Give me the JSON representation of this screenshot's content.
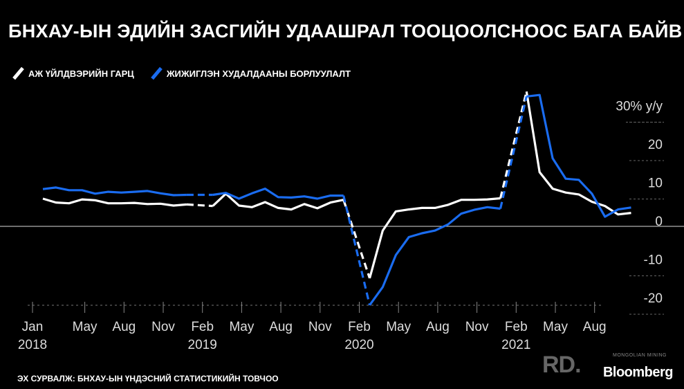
{
  "title": "БНХАУ-ЫН ЭДИЙН ЗАСГИЙН УДААШРАЛ ТООЦООЛСНООС БАГА БАЙВ",
  "legend": [
    {
      "label": "АЖ ҮЙЛДВЭРИЙН ГАРЦ",
      "color": "#ffffff"
    },
    {
      "label": "ЖИЖИГЛЭН ХУДАЛДААНЫ БОРЛУУЛАЛТ",
      "color": "#1a6cf0"
    }
  ],
  "source": "ЭХ СУРВАЛЖ: БНХАУ-ЫН ҮНДЭСНИЙ СТАТИСТИКИЙН ТОВЧОО",
  "watermark": {
    "rd": "RD.",
    "mm": "MONGOLIAN MINING",
    "brand": "Bloomberg"
  },
  "chart_data": {
    "type": "line",
    "title": "БНХАУ-ЫН ЭДИЙН ЗАСГИЙН УДААШРАЛ ТООЦООЛСНООС БАГА БАЙВ",
    "ylabel": "y/y",
    "ylim": [
      -24,
      32
    ],
    "y_ticks": [
      {
        "value": 30,
        "label": "30% y/y"
      },
      {
        "value": 20,
        "label": "20"
      },
      {
        "value": 10,
        "label": "10"
      },
      {
        "value": 0,
        "label": "0"
      },
      {
        "value": -10,
        "label": "-10"
      },
      {
        "value": -20,
        "label": "-20"
      }
    ],
    "x_ticks": [
      {
        "x": "2018-01",
        "label": "Jan",
        "year": "2018"
      },
      {
        "x": "2018-05",
        "label": "May",
        "year": ""
      },
      {
        "x": "2018-08",
        "label": "Aug",
        "year": ""
      },
      {
        "x": "2018-11",
        "label": "Nov",
        "year": ""
      },
      {
        "x": "2019-02",
        "label": "Feb",
        "year": "2019"
      },
      {
        "x": "2019-05",
        "label": "May",
        "year": ""
      },
      {
        "x": "2019-08",
        "label": "Aug",
        "year": ""
      },
      {
        "x": "2019-11",
        "label": "Nov",
        "year": ""
      },
      {
        "x": "2020-02",
        "label": "Feb",
        "year": "2020"
      },
      {
        "x": "2020-05",
        "label": "May",
        "year": ""
      },
      {
        "x": "2020-08",
        "label": "Aug",
        "year": ""
      },
      {
        "x": "2020-11",
        "label": "Nov",
        "year": ""
      },
      {
        "x": "2021-02",
        "label": "Feb",
        "year": "2021"
      },
      {
        "x": "2021-05",
        "label": "May",
        "year": ""
      },
      {
        "x": "2021-08",
        "label": "Aug",
        "year": ""
      }
    ],
    "series": [
      {
        "name": "АЖ ҮЙЛДВЭРИЙН ГАРЦ",
        "color": "#ffffff",
        "segments": [
          {
            "style": "solid",
            "points": [
              [
                "2018-01",
                7.2
              ],
              [
                "2018-02",
                6.2
              ],
              [
                "2018-03",
                6.0
              ],
              [
                "2018-04",
                7.0
              ],
              [
                "2018-05",
                6.8
              ],
              [
                "2018-06",
                6.0
              ],
              [
                "2018-07",
                6.0
              ],
              [
                "2018-08",
                6.1
              ],
              [
                "2018-09",
                5.8
              ],
              [
                "2018-10",
                5.9
              ],
              [
                "2018-11",
                5.4
              ],
              [
                "2018-12",
                5.7
              ]
            ]
          },
          {
            "style": "dashed",
            "points": [
              [
                "2018-12",
                5.7
              ],
              [
                "2019-02",
                5.3
              ]
            ]
          },
          {
            "style": "solid",
            "points": [
              [
                "2019-02",
                5.3
              ],
              [
                "2019-03",
                8.5
              ],
              [
                "2019-04",
                5.4
              ],
              [
                "2019-05",
                5.0
              ],
              [
                "2019-06",
                6.3
              ],
              [
                "2019-07",
                4.8
              ],
              [
                "2019-08",
                4.4
              ],
              [
                "2019-09",
                5.8
              ],
              [
                "2019-10",
                4.7
              ],
              [
                "2019-11",
                6.2
              ],
              [
                "2019-12",
                6.9
              ]
            ]
          },
          {
            "style": "dashed",
            "points": [
              [
                "2019-12",
                6.9
              ],
              [
                "2020-02",
                -13.5
              ]
            ]
          },
          {
            "style": "solid",
            "points": [
              [
                "2020-02",
                -13.5
              ],
              [
                "2020-03",
                -1.1
              ],
              [
                "2020-04",
                3.9
              ],
              [
                "2020-05",
                4.4
              ],
              [
                "2020-06",
                4.8
              ],
              [
                "2020-07",
                4.8
              ],
              [
                "2020-08",
                5.6
              ],
              [
                "2020-09",
                6.9
              ],
              [
                "2020-10",
                6.9
              ],
              [
                "2020-11",
                7.0
              ],
              [
                "2020-12",
                7.3
              ]
            ]
          },
          {
            "style": "dashed",
            "points": [
              [
                "2020-12",
                7.3
              ],
              [
                "2021-02",
                35.1
              ]
            ]
          },
          {
            "style": "solid",
            "points": [
              [
                "2021-02",
                35.1
              ],
              [
                "2021-03",
                14.1
              ],
              [
                "2021-04",
                9.8
              ],
              [
                "2021-05",
                8.8
              ],
              [
                "2021-06",
                8.3
              ],
              [
                "2021-07",
                6.4
              ],
              [
                "2021-08",
                5.3
              ],
              [
                "2021-09",
                3.1
              ],
              [
                "2021-10",
                3.5
              ]
            ]
          }
        ]
      },
      {
        "name": "ЖИЖИГЛЭН ХУДАЛДААНЫ БОРЛУУЛАЛТ",
        "color": "#1a6cf0",
        "segments": [
          {
            "style": "solid",
            "points": [
              [
                "2018-01",
                9.7
              ],
              [
                "2018-02",
                10.1
              ],
              [
                "2018-03",
                9.4
              ],
              [
                "2018-04",
                9.4
              ],
              [
                "2018-05",
                8.5
              ],
              [
                "2018-06",
                9.0
              ],
              [
                "2018-07",
                8.8
              ],
              [
                "2018-08",
                9.0
              ],
              [
                "2018-09",
                9.2
              ],
              [
                "2018-10",
                8.6
              ],
              [
                "2018-11",
                8.1
              ],
              [
                "2018-12",
                8.2
              ]
            ]
          },
          {
            "style": "dashed",
            "points": [
              [
                "2018-12",
                8.2
              ],
              [
                "2019-02",
                8.2
              ]
            ]
          },
          {
            "style": "solid",
            "points": [
              [
                "2019-02",
                8.2
              ],
              [
                "2019-03",
                8.7
              ],
              [
                "2019-04",
                7.2
              ],
              [
                "2019-05",
                8.6
              ],
              [
                "2019-06",
                9.8
              ],
              [
                "2019-07",
                7.6
              ],
              [
                "2019-08",
                7.5
              ],
              [
                "2019-09",
                7.8
              ],
              [
                "2019-10",
                7.2
              ],
              [
                "2019-11",
                8.0
              ],
              [
                "2019-12",
                8.0
              ]
            ]
          },
          {
            "style": "dashed",
            "points": [
              [
                "2019-12",
                8.0
              ],
              [
                "2020-02",
                -20.5
              ]
            ]
          },
          {
            "style": "solid",
            "points": [
              [
                "2020-02",
                -20.5
              ],
              [
                "2020-03",
                -15.8
              ],
              [
                "2020-04",
                -7.5
              ],
              [
                "2020-05",
                -2.8
              ],
              [
                "2020-06",
                -1.8
              ],
              [
                "2020-07",
                -1.1
              ],
              [
                "2020-08",
                0.5
              ],
              [
                "2020-09",
                3.3
              ],
              [
                "2020-10",
                4.3
              ],
              [
                "2020-11",
                5.0
              ],
              [
                "2020-12",
                4.6
              ]
            ]
          },
          {
            "style": "dashed",
            "points": [
              [
                "2020-12",
                4.6
              ],
              [
                "2021-02",
                33.8
              ]
            ]
          },
          {
            "style": "solid",
            "points": [
              [
                "2021-02",
                33.8
              ],
              [
                "2021-03",
                34.2
              ],
              [
                "2021-04",
                17.7
              ],
              [
                "2021-05",
                12.4
              ],
              [
                "2021-06",
                12.1
              ],
              [
                "2021-07",
                8.5
              ],
              [
                "2021-08",
                2.5
              ],
              [
                "2021-09",
                4.4
              ],
              [
                "2021-10",
                4.9
              ]
            ]
          }
        ]
      }
    ]
  }
}
